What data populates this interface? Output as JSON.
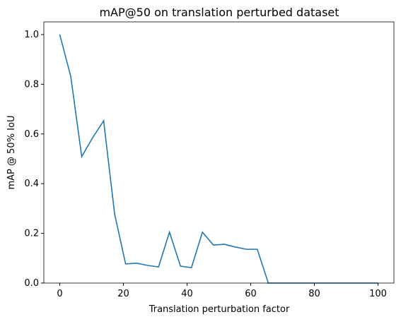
{
  "chart_data": {
    "type": "line",
    "title": "mAP@50 on translation perturbed dataset",
    "x_label": "Translation perturbation factor",
    "y_label": "mAP @ 50% IoU",
    "x": [
      0,
      3.45,
      6.9,
      10.34,
      13.79,
      17.24,
      20.69,
      24.14,
      27.59,
      31.03,
      34.48,
      37.93,
      41.38,
      44.83,
      48.28,
      51.72,
      55.17,
      58.62,
      62.07,
      65.52,
      68.97,
      72.41,
      75.86,
      79.31,
      82.76,
      86.21,
      89.66,
      93.1,
      96.55,
      100
    ],
    "series": [
      {
        "name": "mAP",
        "color": "#1f77b4",
        "values": [
          1.0,
          0.832,
          0.509,
          0.585,
          0.653,
          0.278,
          0.077,
          0.08,
          0.071,
          0.065,
          0.205,
          0.068,
          0.062,
          0.205,
          0.153,
          0.156,
          0.145,
          0.136,
          0.136,
          0,
          0,
          0,
          0,
          0,
          0,
          0,
          0,
          0,
          0,
          0
        ]
      }
    ],
    "xlim": [
      -5,
      105
    ],
    "ylim": [
      0,
      1.051
    ],
    "xticks": [
      0,
      20,
      40,
      60,
      80,
      100
    ],
    "yticks": [
      {
        "value": 0,
        "label": "0.0"
      },
      {
        "value": 0.2,
        "label": "0.2"
      },
      {
        "value": 0.4,
        "label": "0.4"
      },
      {
        "value": 0.6,
        "label": "0.6"
      },
      {
        "value": 0.8,
        "label": "0.8"
      },
      {
        "value": 1.0,
        "label": "1.0"
      }
    ],
    "grid": false
  }
}
